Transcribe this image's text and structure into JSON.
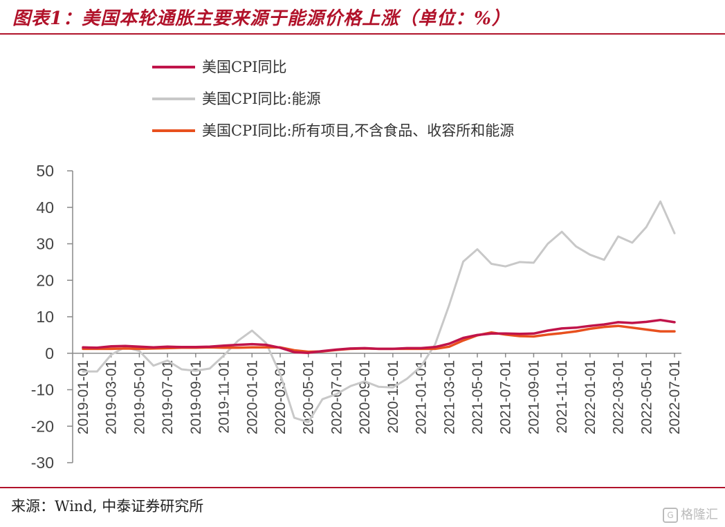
{
  "header": {
    "title": "图表1：美国本轮通胀主要来源于能源价格上涨（单位：%）"
  },
  "footer": {
    "source": "来源：Wind, 中泰证券研究所",
    "watermark": "格隆汇"
  },
  "colors": {
    "accent": "#b1122a",
    "cpi": "#c0144a",
    "energy": "#c8c8c8",
    "core": "#e8501e"
  },
  "chart_data": {
    "type": "line",
    "title": "",
    "xlabel": "",
    "ylabel": "",
    "ylim": [
      -30,
      50
    ],
    "yticks": [
      50,
      40,
      30,
      20,
      10,
      0,
      -10,
      -20,
      -30
    ],
    "grid": false,
    "legend_position": "top-left",
    "x": [
      "2019-01",
      "2019-02",
      "2019-03",
      "2019-04",
      "2019-05",
      "2019-06",
      "2019-07",
      "2019-08",
      "2019-09",
      "2019-10",
      "2019-11",
      "2019-12",
      "2020-01",
      "2020-02",
      "2020-03",
      "2020-04",
      "2020-05",
      "2020-06",
      "2020-07",
      "2020-08",
      "2020-09",
      "2020-10",
      "2020-11",
      "2020-12",
      "2021-01",
      "2021-02",
      "2021-03",
      "2021-04",
      "2021-05",
      "2021-06",
      "2021-07",
      "2021-08",
      "2021-09",
      "2021-10",
      "2021-11",
      "2021-12",
      "2022-01",
      "2022-02",
      "2022-03",
      "2022-04",
      "2022-05",
      "2022-06",
      "2022-07"
    ],
    "xtick_labels": [
      "2019-01-01",
      "2019-03-01",
      "2019-05-01",
      "2019-07-01",
      "2019-09-01",
      "2019-11-01",
      "2020-01-01",
      "2020-03-01",
      "2020-05-01",
      "2020-07-01",
      "2020-09-01",
      "2020-11-01",
      "2021-01-01",
      "2021-03-01",
      "2021-05-01",
      "2021-07-01",
      "2021-09-01",
      "2021-11-01",
      "2022-01-01",
      "2022-03-01",
      "2022-05-01",
      "2022-07-01"
    ],
    "series": [
      {
        "name": "美国CPI同比",
        "color": "#c0144a",
        "values": [
          1.6,
          1.5,
          1.9,
          2.0,
          1.8,
          1.6,
          1.8,
          1.7,
          1.7,
          1.8,
          2.1,
          2.3,
          2.5,
          2.3,
          1.5,
          0.3,
          0.1,
          0.6,
          1.0,
          1.3,
          1.4,
          1.2,
          1.2,
          1.4,
          1.4,
          1.7,
          2.6,
          4.2,
          5.0,
          5.4,
          5.4,
          5.3,
          5.4,
          6.2,
          6.8,
          7.0,
          7.5,
          7.9,
          8.5,
          8.3,
          8.6,
          9.1,
          8.5
        ]
      },
      {
        "name": "美国CPI同比:能源",
        "color": "#c8c8c8",
        "values": [
          -5.0,
          -5.0,
          -0.4,
          1.7,
          0.6,
          -3.4,
          -2.0,
          -4.4,
          -4.8,
          -4.2,
          -0.6,
          3.4,
          6.2,
          2.8,
          -5.7,
          -17.7,
          -18.9,
          -12.6,
          -11.2,
          -9.0,
          -7.7,
          -9.2,
          -9.4,
          -7.0,
          -3.6,
          2.4,
          13.2,
          25.1,
          28.5,
          24.5,
          23.8,
          25.0,
          24.8,
          30.0,
          33.3,
          29.3,
          27.0,
          25.6,
          32.0,
          30.3,
          34.6,
          41.6,
          32.9
        ]
      },
      {
        "name": "美国CPI同比:所有项目,不含食品、收容所和能源",
        "color": "#e8501e",
        "values": [
          1.2,
          1.2,
          1.2,
          1.3,
          1.2,
          1.3,
          1.4,
          1.5,
          1.5,
          1.6,
          1.5,
          1.5,
          1.6,
          1.6,
          1.6,
          0.8,
          0.4,
          0.5,
          0.9,
          1.2,
          1.3,
          1.2,
          1.2,
          1.2,
          1.2,
          1.2,
          1.8,
          3.5,
          4.9,
          5.7,
          5.1,
          4.7,
          4.6,
          5.1,
          5.5,
          6.0,
          6.7,
          7.2,
          7.5,
          7.0,
          6.5,
          6.0,
          6.0
        ]
      }
    ]
  }
}
